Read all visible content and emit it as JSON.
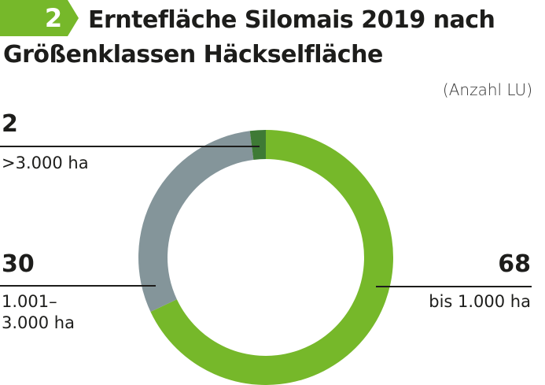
{
  "header": {
    "number": "2",
    "title_line1": "Erntefläche Silomais 2019 nach",
    "title_line2": "Größenklassen Häckselfläche",
    "unit": "(Anzahl LU)"
  },
  "colors": {
    "accent": "#76b82a",
    "gray": "#84959a",
    "dark_green": "#3e7a35"
  },
  "chart_data": {
    "type": "pie",
    "subtype": "donut",
    "title": "Erntefläche Silomais 2019 nach Größenklassen Häckselfläche",
    "unit": "(Anzahl LU)",
    "slices": [
      {
        "label": "bis 1.000 ha",
        "value": 68,
        "value_label": "68",
        "color": "#76b82a"
      },
      {
        "label_line1": "1.001–",
        "label_line2": "3.000 ha",
        "label": "1.001–3.000 ha",
        "value": 30,
        "value_label": "30",
        "color": "#84959a"
      },
      {
        "label": ">3.000 ha",
        "value": 2,
        "value_label": "2",
        "color": "#3e7a35"
      }
    ]
  }
}
